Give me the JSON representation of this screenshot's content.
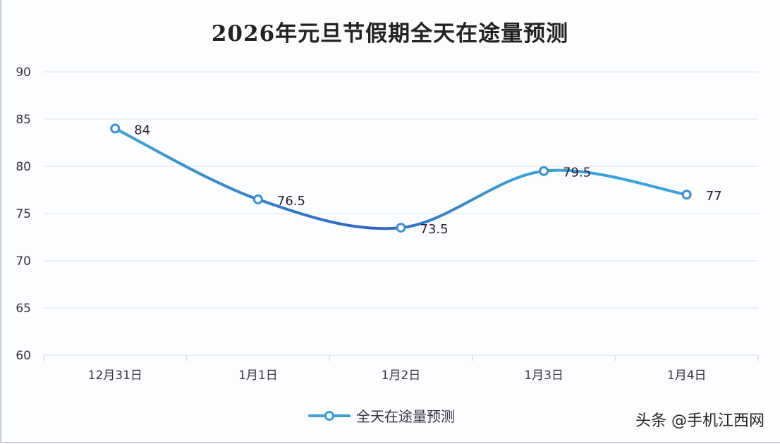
{
  "chart_data": {
    "type": "line",
    "title": "2026年元旦节假期全天在途量预测",
    "categories": [
      "12月31日",
      "1月1日",
      "1月2日",
      "1月3日",
      "1月4日"
    ],
    "series": [
      {
        "name": "全天在途量预测",
        "values": [
          84,
          76.5,
          73.5,
          79.5,
          77
        ]
      }
    ],
    "data_labels": [
      "84",
      "76.5",
      "73.5",
      "79.5",
      "77"
    ],
    "ylim": [
      60,
      90
    ],
    "yticks": [
      "60",
      "65",
      "70",
      "75",
      "80",
      "85",
      "90"
    ],
    "smooth": true,
    "grid": true,
    "legend_position": "bottom",
    "colors": {
      "line": "#3a9fd6",
      "line_dark": "#2f66c4",
      "grid": "#e3e7ee"
    }
  },
  "watermark": "头条 @手机江西网"
}
